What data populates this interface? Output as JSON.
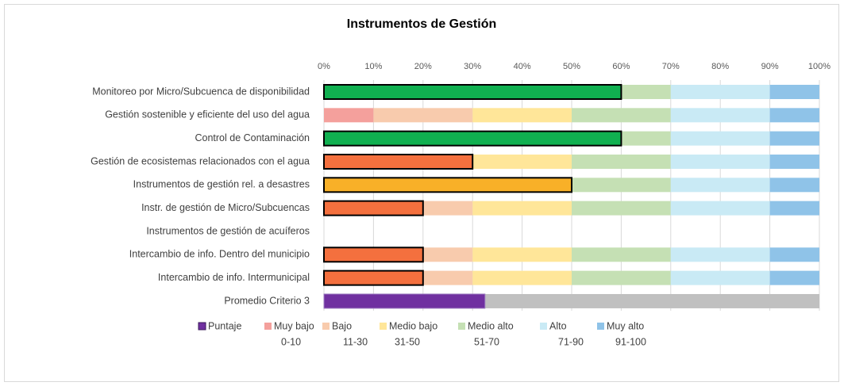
{
  "chart_data": {
    "type": "bar",
    "orientation": "horizontal",
    "title": "Instrumentos de Gestión",
    "categories": [
      "Monitoreo por Micro/Subcuenca de disponibilidad",
      "Gestión sostenible y eficiente del uso del agua",
      "Control de Contaminación",
      "Gestión de ecosistemas relacionados con el agua",
      "Instrumentos de gestión rel. a desastres",
      "Instr. de gestión de Micro/Subcuencas",
      "Instrumentos de gestión de acuíferos",
      "Intercambio de info. Dentro del municipio",
      "Intercambio de info. Intermunicipal",
      "Promedio Criterio 3"
    ],
    "score": {
      "name": "Puntaje",
      "color": "#7030a0",
      "values": [
        60,
        0,
        60,
        30,
        50,
        20,
        null,
        20,
        20,
        32.5
      ],
      "colors": [
        "#10b050",
        "#10b050",
        "#10b050",
        "#f4703e",
        "#f8b028",
        "#f4703e",
        "#f4703e",
        "#f4703e",
        "#f4703e",
        "#7030a0"
      ]
    },
    "series": [
      {
        "name": "Muy bajo",
        "range": "0-10",
        "color": "#f4a09c",
        "values": [
          10,
          10,
          10,
          10,
          10,
          10,
          null,
          10,
          10,
          null
        ]
      },
      {
        "name": "Bajo",
        "range": "11-30",
        "color": "#f8cbad",
        "values": [
          20,
          20,
          20,
          20,
          20,
          20,
          null,
          20,
          20,
          null
        ]
      },
      {
        "name": "Medio bajo",
        "range": "31-50",
        "color": "#ffe699",
        "values": [
          20,
          20,
          20,
          20,
          20,
          20,
          null,
          20,
          20,
          null
        ]
      },
      {
        "name": "Medio alto",
        "range": "51-70",
        "color": "#c5e0b4",
        "values": [
          20,
          20,
          20,
          20,
          20,
          20,
          null,
          20,
          20,
          null
        ]
      },
      {
        "name": "Alto",
        "range": "71-90",
        "color": "#c9eaf5",
        "values": [
          20,
          20,
          20,
          20,
          20,
          20,
          null,
          20,
          20,
          null
        ]
      },
      {
        "name": "Muy alto",
        "range": "91-100",
        "color": "#8fc3e8",
        "values": [
          10,
          10,
          10,
          10,
          10,
          10,
          null,
          10,
          10,
          null
        ]
      }
    ],
    "xlim": [
      0,
      100
    ],
    "xticks": [
      {
        "value": 0,
        "label": "0%"
      },
      {
        "value": 10,
        "label": "10%"
      },
      {
        "value": 20,
        "label": "20%"
      },
      {
        "value": 30,
        "label": "30%"
      },
      {
        "value": 40,
        "label": "40%"
      },
      {
        "value": 50,
        "label": "50%"
      },
      {
        "value": 60,
        "label": "60%"
      },
      {
        "value": 70,
        "label": "70%"
      },
      {
        "value": 80,
        "label": "80%"
      },
      {
        "value": 90,
        "label": "90%"
      },
      {
        "value": 100,
        "label": "100%"
      }
    ],
    "grid": true
  }
}
